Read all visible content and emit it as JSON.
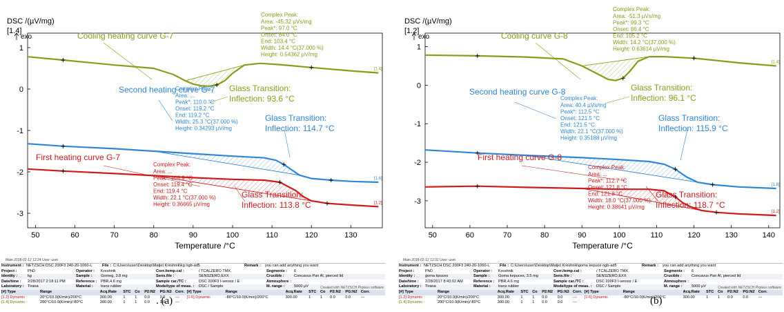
{
  "chart_data": [
    {
      "type": "line",
      "panel": "a",
      "ylabel": "DSC /(µV/mg)",
      "xlabel": "Temperature /°C",
      "exo_label": "exo",
      "y_axis_max_label": "[1.4]",
      "xlim": [
        48,
        138
      ],
      "ylim": [
        -3.35,
        1.35
      ],
      "xticks": [
        50,
        60,
        70,
        80,
        90,
        100,
        110,
        120,
        130
      ],
      "yticks": [
        1,
        0,
        -1,
        -2,
        -3
      ],
      "series": [
        {
          "name": "Cooling heating curve G-7",
          "color": "#8b9a1a",
          "segment_tag": "[1.4]",
          "x": [
            48,
            57,
            70,
            80,
            85,
            88,
            90,
            92,
            94,
            96,
            98,
            100,
            103,
            107,
            112,
            120,
            130,
            137
          ],
          "y": [
            0.78,
            0.7,
            0.58,
            0.5,
            0.35,
            0.2,
            0.12,
            0.08,
            0.07,
            0.1,
            0.2,
            0.38,
            0.58,
            0.62,
            0.59,
            0.52,
            0.44,
            0.39
          ]
        },
        {
          "name": "Second heating curve G-7",
          "color": "#2e86d6",
          "segment_tag": "[1.6]",
          "x": [
            48,
            57,
            70,
            80,
            90,
            100,
            108,
            111,
            113,
            115,
            117,
            120,
            125,
            130,
            137
          ],
          "y": [
            -1.32,
            -1.38,
            -1.44,
            -1.5,
            -1.56,
            -1.62,
            -1.66,
            -1.72,
            -1.82,
            -1.95,
            -2.08,
            -2.16,
            -2.2,
            -2.23,
            -2.25
          ]
        },
        {
          "name": "First heating curve G-7",
          "color": "#d11a1a",
          "segment_tag": "[1.2]",
          "x": [
            48,
            57,
            70,
            80,
            90,
            100,
            108,
            112,
            116,
            118,
            120,
            124,
            130,
            137
          ],
          "y": [
            -1.93,
            -1.98,
            -2.04,
            -2.09,
            -2.14,
            -2.18,
            -2.2,
            -2.25,
            -2.45,
            -2.6,
            -2.7,
            -2.76,
            -2.8,
            -2.84
          ]
        }
      ],
      "annotations": {
        "cooling_peak": {
          "title": "Complex Peak:",
          "lines": [
            "Area:    -45.32 µVs/mg",
            "Peak*:   97.0 °C",
            "Onset:   84.0 °C",
            "End:     103.4 °C",
            "Width:   14.4 °C(37.000 %)",
            "Height:  0.54362 µV/mg"
          ]
        },
        "cooling_glass": {
          "title": "Glass Transition:",
          "inflection": "Inflection: 93.6 °C"
        },
        "second_peak": {
          "title": "Complex Peak:",
          "lines": [
            "Area:    ...",
            "Peak*:   110.0 °C",
            "Onset:   119.2 °C",
            "End:     119.2 °C",
            "Width:   25.3 °C(37.000 %)",
            "Height:  0.34293 µV/mg"
          ]
        },
        "second_glass": {
          "title": "Glass Transition:",
          "inflection": "Inflection:  114.7 °C"
        },
        "first_peak": {
          "title": "Complex Peak:",
          "lines": [
            "Area:    ...",
            "Peak*:   109.9 °C",
            "Onset:   119.4 °C",
            "End:     119.4 °C",
            "Width:   22.1 °C(37.000 %)",
            "Height:  0.36665 µV/mg"
          ]
        },
        "first_glass": {
          "title": "Glass Transition:",
          "inflection": "Inflection: 113.8 °C"
        }
      }
    },
    {
      "type": "line",
      "panel": "b",
      "ylabel": "DSC /(µV/mg)",
      "xlabel": "Temperature /°C",
      "exo_label": "exo",
      "y_axis_max_label": "[1.2]",
      "xlim": [
        48,
        143
      ],
      "ylim": [
        -3.7,
        1.35
      ],
      "xticks": [
        50,
        60,
        70,
        80,
        90,
        100,
        110,
        120,
        130,
        140
      ],
      "yticks": [
        1,
        0,
        -1,
        -2,
        -3
      ],
      "series": [
        {
          "name": "Cooling curve G-8",
          "color": "#8b9a1a",
          "segment_tag": "[1.4]",
          "x": [
            48,
            62,
            75,
            85,
            90,
            94,
            97,
            99,
            101,
            103,
            105,
            108,
            112,
            120,
            132,
            142
          ],
          "y": [
            0.78,
            0.76,
            0.73,
            0.68,
            0.5,
            0.3,
            0.15,
            0.12,
            0.18,
            0.38,
            0.62,
            0.74,
            0.74,
            0.7,
            0.58,
            0.5
          ]
        },
        {
          "name": "Second heating curve G-8",
          "color": "#2e86d6",
          "segment_tag": "[1.6]",
          "x": [
            48,
            62,
            75,
            90,
            100,
            108,
            112,
            115,
            118,
            121,
            125,
            132,
            142
          ],
          "y": [
            -1.68,
            -1.76,
            -1.82,
            -1.88,
            -1.93,
            -1.98,
            -2.05,
            -2.18,
            -2.38,
            -2.52,
            -2.58,
            -2.64,
            -2.68
          ]
        },
        {
          "name": "First heating curve G-8",
          "color": "#d11a1a",
          "segment_tag": "[1.2]",
          "x": [
            48,
            62,
            75,
            90,
            100,
            108,
            112,
            115,
            117,
            119,
            122,
            126,
            132,
            142
          ],
          "y": [
            -2.64,
            -2.62,
            -2.65,
            -2.68,
            -2.7,
            -2.7,
            -2.74,
            -2.9,
            -3.05,
            -3.15,
            -3.25,
            -3.3,
            -3.34,
            -3.38
          ]
        }
      ],
      "annotations": {
        "cooling_peak": {
          "title": "Complex Peak:",
          "lines": [
            "Area:    -51.3 µVs/mg",
            "Peak*:   99.3 °C",
            "Onset:   86.4 °C",
            "End:     105.2 °C",
            "Width:   14.2 °C(37.000 %)",
            "Height:  0.63614 µV/mg"
          ]
        },
        "cooling_glass": {
          "title": "Glass Transition:",
          "inflection": "Inflection: 96.1 °C"
        },
        "second_peak": {
          "title": "Complex Peak:",
          "lines": [
            "Area:    40.4 µVs/mg",
            "Peak*:   112.5 °C",
            "Onset:   121.5 °C",
            "End:     121.5 °C",
            "Width:   22.1 °C(37.000 %)",
            "Height:  0.35188 µV/mg"
          ]
        },
        "second_glass": {
          "title": "Glass Transition:",
          "inflection": "Inflection: 115.9 °C"
        },
        "first_peak": {
          "title": "Complex Peak:",
          "lines": [
            "Area:    ...",
            "Peak*:   112.7 °C",
            "Onset:   121.8 °C",
            "End:     121.8 °C",
            "Width:   18.0 °C(37.000 %)",
            "Height:  0.38641 µV/mg"
          ]
        },
        "first_glass": {
          "title": "Glass Transition:",
          "inflection": "Inflection: 118.7 °C"
        }
      }
    }
  ],
  "panel_a": {
    "caption": ". (a)",
    "date_stamp": "Main  2018-02-12 12:24  User: user",
    "footer": "Created with NETZSCH Proteus software",
    "instrument_row": [
      "Instrument :",
      "NETZSCH DSC 200F3 240-20-1060-L",
      "File :",
      "C:\\Users\\user\\Desktop\\Matjet Kreshnik\\kg ngb-ad5",
      "Remark :",
      "you can add anything you want"
    ],
    "rows": [
      [
        "Project :",
        "PhD",
        "Operator :",
        "Kreshnik",
        "Corr./temp.cal :",
        "/ TCALZERO TMX",
        "Segments :",
        "6"
      ],
      [
        "Identity :",
        "kg",
        "Sample :",
        "Gomeg, 3.8 mg",
        "Sens.file :",
        "SENSZERO.EXX",
        "Crucible :",
        "Concavus Pan Al, pierced lid"
      ],
      [
        "Date/time :",
        "2/28/2017 2:18:11 PM",
        "Reference :",
        "PBR,4.6 mg",
        "Sample car./TC :",
        "DSC 200F3 t-sensor / E",
        "Atmosphere :",
        ""
      ],
      [
        "Laboratory :",
        "Tirana",
        "Material :",
        "trans rubber",
        "Mode/type of meas. :",
        "DSC / Sample",
        "M. range :",
        "5000 µV"
      ]
    ],
    "seg_header": [
      "[#] Type",
      "Range",
      "Acq.Rate",
      "STC",
      "Co",
      "P2:N2",
      "PG:N2",
      "Corr.",
      "[#] Type",
      "Range",
      "Acq.Rate",
      "STC",
      "Co",
      "P2:N2",
      "PG:N2",
      "Corr."
    ],
    "seg_rows": [
      [
        "[1.2] Dynamic",
        "20°C/10.0(K/min)/200°C",
        "300.00",
        "1",
        "1",
        "0.0",
        "0.0",
        "---",
        "[1.6] Dynamic",
        "-80°C/10.0(K/min)/200°C",
        "300.00",
        "1",
        "1",
        "0.0",
        "0.0",
        "---"
      ],
      [
        "[1.4] Dynamic",
        "200°C/10.0(K/min)/-80°C",
        "300.00",
        "1",
        "1",
        "0.0",
        "0.0",
        "---",
        "",
        "",
        "",
        "",
        "",
        "",
        "",
        ""
      ]
    ]
  },
  "panel_b": {
    "caption": "(b)",
    "date_stamp": "Main  2018-02-12 12:32  User: user",
    "footer": "Created with NETZSCH Proteus software",
    "instrument_row": [
      "Instrument :",
      "NETZSCH DSC 200F3 240-20-1060-L",
      "File :",
      "C:\\Users\\user\\Desktop\\Matjet Kreshnik\\goma kepuce ngb-ad5",
      "Remark :",
      "you can add anything you want"
    ],
    "rows": [
      [
        "Project :",
        "PhD",
        "Operator :",
        "Kreshnik",
        "Corr./temp.cal :",
        "/ TCALZERO TMX",
        "Segments :",
        "6"
      ],
      [
        "Identity :",
        "goma kpuces",
        "Sample :",
        "Goma kepuces, 3.5 mg",
        "Sens.file :",
        "SENSZERO.EXX",
        "Crucible :",
        "Concavus Pan Al, pierced lid"
      ],
      [
        "Date/time :",
        "2/28/2017 8:43:02 AM",
        "Reference :",
        "PBR,4.6 mg",
        "Sample car./TC :",
        "DSC 200F3 t-sensor / E",
        "Atmosphere :",
        ""
      ],
      [
        "Laboratory :",
        "Tirana",
        "Material :",
        "trans rubber",
        "Mode/type of meas. :",
        "DSC / Sample",
        "M. range :",
        "5000 µV"
      ]
    ],
    "seg_header": [
      "[#] Type",
      "Range",
      "Acq.Rate",
      "STC",
      "Co",
      "P2:N2",
      "PG:N2",
      "Corr.",
      "[#] Type",
      "Range",
      "Acq.Rate",
      "STC",
      "Co",
      "P2:N2",
      "PG:N2",
      "Corr."
    ],
    "seg_rows": [
      [
        "[1.2] Dynamic",
        "20°C/10.0(K/min)/200°C",
        "300.00",
        "1",
        "1",
        "0.0",
        "0.0",
        "---",
        "[1.6] Dynamic",
        "-80°C/10.0(K/min)/200°C",
        "300.00",
        "1",
        "1",
        "0.0",
        "0.0",
        "---"
      ],
      [
        "[1.4] Dynamic",
        "200°C/10.0(K/min)/-80°C",
        "300.00",
        "1",
        "1",
        "0.0",
        "0.0",
        "---",
        "",
        "",
        "",
        "",
        "",
        "",
        "",
        ""
      ]
    ]
  }
}
